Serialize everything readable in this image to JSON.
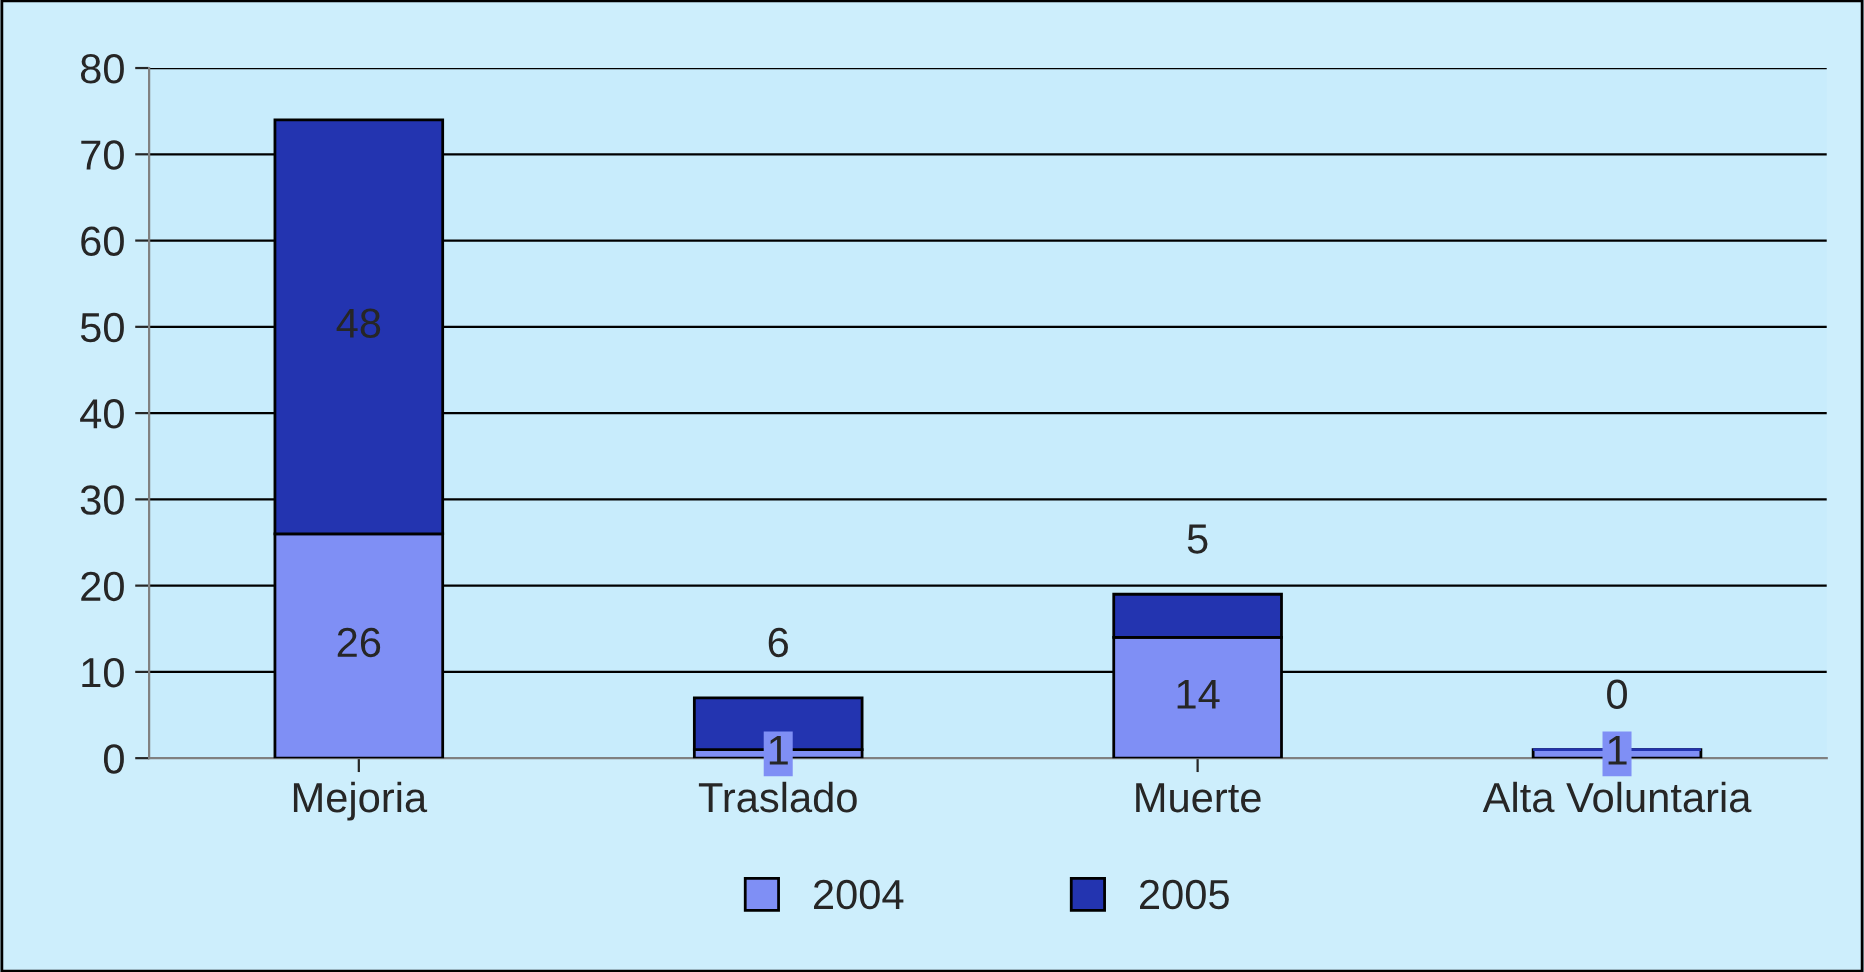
{
  "chart_data": {
    "type": "bar",
    "stacked": true,
    "categories": [
      "Mejoria",
      "Traslado",
      "Muerte",
      "Alta Voluntaria"
    ],
    "series": [
      {
        "name": "2004",
        "color": "#7f8ff5",
        "values": [
          26,
          1,
          14,
          1
        ]
      },
      {
        "name": "2005",
        "color": "#2334b0",
        "values": [
          48,
          6,
          5,
          0
        ]
      }
    ],
    "ylim": [
      0,
      80
    ],
    "yticks": [
      0,
      10,
      20,
      30,
      40,
      50,
      60,
      70,
      80
    ],
    "grid": "y",
    "legend": "bottom",
    "data_labels": true
  }
}
